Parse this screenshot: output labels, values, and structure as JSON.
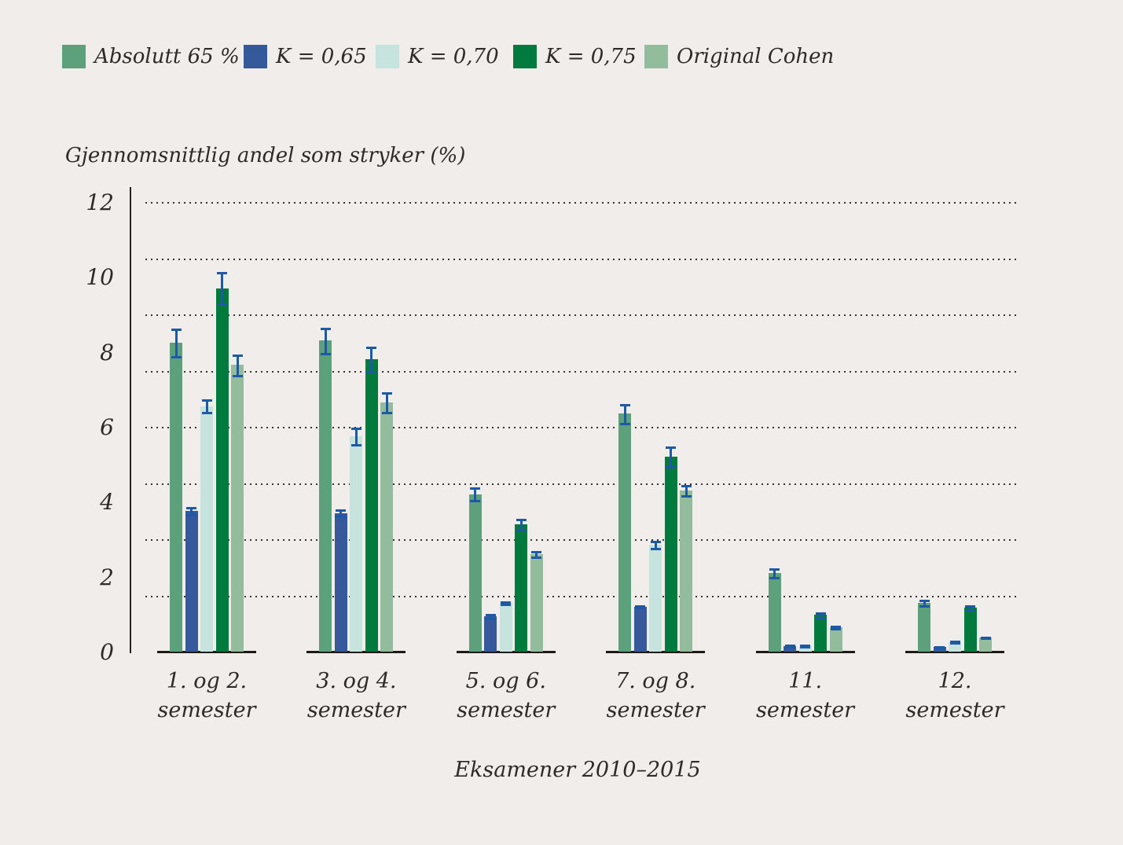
{
  "page": {
    "background": "#f0edeb",
    "text_color": "#2e2a28"
  },
  "legend": {
    "position": "top-left",
    "items": [
      {
        "label": "Absolutt 65 %",
        "color": "#5ca17c"
      },
      {
        "label": "K = 0,65",
        "color": "#36599b"
      },
      {
        "label": "K = 0,70",
        "color": "#c6e3dd"
      },
      {
        "label": "K = 0,75",
        "color": "#007a3d"
      },
      {
        "label": "Original Cohen",
        "color": "#93bc9d"
      }
    ]
  },
  "chart_data": {
    "type": "bar",
    "title": "Gjennomsnittlig andel som stryker (%)",
    "xlabel": "Eksamener 2010–2015",
    "ylabel": "",
    "ylim": [
      0,
      12.42
    ],
    "yticks": [
      "12",
      "10",
      "8",
      "6",
      "4",
      "2",
      "0"
    ],
    "ytick_values": [
      12,
      10,
      8,
      6,
      4,
      2,
      0
    ],
    "gridline_values": [
      1.5,
      3,
      4.5,
      6,
      7.5,
      9,
      10.5,
      12
    ],
    "grid_style": "dotted-horizontal",
    "legend_position": "top-left",
    "error_bars": true,
    "error_bar_color": "#1d59a5",
    "categories": [
      [
        "1. og 2.",
        "semester"
      ],
      [
        "3. og 4.",
        "semester"
      ],
      [
        "5. og 6.",
        "semester"
      ],
      [
        "7. og 8.",
        "semester"
      ],
      [
        "11.",
        "semester"
      ],
      [
        "12.",
        "semester"
      ]
    ],
    "series": [
      {
        "name": "Absolutt 65 %",
        "color": "#5ca17c",
        "values": [
          8.25,
          8.3,
          4.2,
          6.35,
          2.1,
          1.3
        ],
        "errors": [
          0.4,
          0.37,
          0.2,
          0.28,
          0.14,
          0.1
        ]
      },
      {
        "name": "K = 0,65",
        "color": "#36599b",
        "values": [
          3.75,
          3.7,
          0.95,
          1.2,
          0.15,
          0.13
        ],
        "errors": [
          0.13,
          0.12,
          0.08,
          0.05,
          0.05,
          0.04
        ]
      },
      {
        "name": "K = 0,70",
        "color": "#c6e3dd",
        "values": [
          6.55,
          5.75,
          1.3,
          2.85,
          0.15,
          0.26
        ],
        "errors": [
          0.2,
          0.25,
          0.06,
          0.12,
          0.05,
          0.05
        ]
      },
      {
        "name": "K = 0,75",
        "color": "#007a3d",
        "values": [
          9.7,
          7.8,
          3.4,
          5.2,
          0.98,
          1.17
        ],
        "errors": [
          0.45,
          0.36,
          0.16,
          0.3,
          0.1,
          0.08
        ]
      },
      {
        "name": "Original Cohen",
        "color": "#93bc9d",
        "values": [
          7.65,
          6.65,
          2.6,
          4.3,
          0.65,
          0.38
        ],
        "errors": [
          0.3,
          0.3,
          0.1,
          0.16,
          0.06,
          0.05
        ]
      }
    ]
  }
}
